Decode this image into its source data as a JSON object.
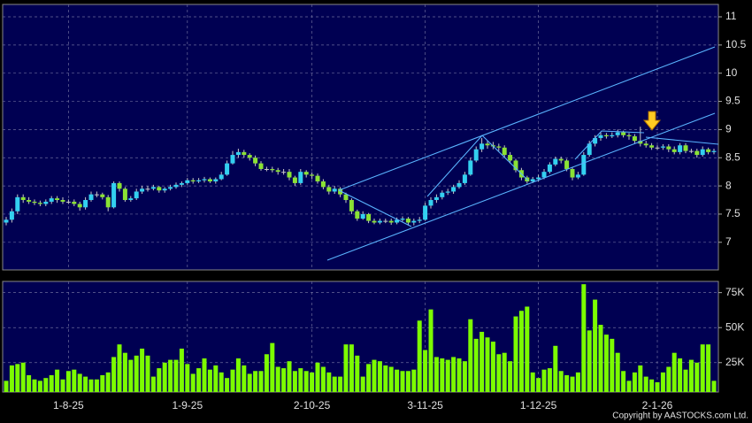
{
  "chart_data": {
    "type": "candlestick",
    "categories": [
      null,
      null,
      null,
      null,
      null,
      null,
      null,
      null,
      null,
      null,
      null,
      "1-8-25",
      null,
      null,
      null,
      null,
      null,
      null,
      null,
      null,
      null,
      null,
      null,
      null,
      null,
      null,
      null,
      null,
      null,
      null,
      null,
      null,
      "1-9-25",
      null,
      null,
      null,
      null,
      null,
      null,
      null,
      null,
      null,
      null,
      null,
      null,
      null,
      null,
      null,
      null,
      null,
      null,
      null,
      null,
      null,
      "2-10-25",
      null,
      null,
      null,
      null,
      null,
      null,
      null,
      null,
      null,
      null,
      null,
      null,
      null,
      null,
      null,
      null,
      null,
      null,
      null,
      "3-11-25",
      null,
      null,
      null,
      null,
      null,
      null,
      null,
      null,
      null,
      null,
      null,
      null,
      null,
      null,
      null,
      null,
      null,
      null,
      null,
      "1-12-25",
      null,
      null,
      null,
      null,
      null,
      null,
      null,
      null,
      null,
      null,
      null,
      null,
      null,
      null,
      null,
      null,
      null,
      null,
      null,
      null,
      "2-1-26",
      null,
      null,
      null,
      null,
      null,
      null,
      null,
      null,
      null,
      null
    ],
    "ohlc": [
      [
        7.35,
        7.45,
        7.3,
        7.4
      ],
      [
        7.4,
        7.6,
        7.35,
        7.55
      ],
      [
        7.55,
        7.85,
        7.5,
        7.8
      ],
      [
        7.8,
        7.85,
        7.7,
        7.75
      ],
      [
        7.75,
        7.8,
        7.68,
        7.72
      ],
      [
        7.72,
        7.76,
        7.66,
        7.7
      ],
      [
        7.7,
        7.74,
        7.64,
        7.68
      ],
      [
        7.68,
        7.76,
        7.64,
        7.72
      ],
      [
        7.72,
        7.82,
        7.68,
        7.78
      ],
      [
        7.78,
        7.82,
        7.7,
        7.75
      ],
      [
        7.75,
        7.8,
        7.68,
        7.72
      ],
      [
        7.72,
        7.76,
        7.68,
        7.72
      ],
      [
        7.72,
        7.76,
        7.64,
        7.68
      ],
      [
        7.68,
        7.72,
        7.56,
        7.62
      ],
      [
        7.62,
        7.8,
        7.58,
        7.75
      ],
      [
        7.75,
        7.9,
        7.72,
        7.85
      ],
      [
        7.85,
        7.9,
        7.8,
        7.85
      ],
      [
        7.85,
        7.88,
        7.76,
        7.8
      ],
      [
        7.8,
        7.84,
        7.55,
        7.62
      ],
      [
        7.62,
        8.08,
        7.6,
        8.05
      ],
      [
        8.05,
        8.08,
        7.9,
        7.95
      ],
      [
        7.95,
        7.98,
        7.72,
        7.75
      ],
      [
        7.75,
        7.82,
        7.72,
        7.78
      ],
      [
        7.78,
        7.95,
        7.75,
        7.9
      ],
      [
        7.9,
        8.0,
        7.86,
        7.95
      ],
      [
        7.95,
        8.0,
        7.9,
        7.95
      ],
      [
        7.95,
        8.02,
        7.92,
        7.98
      ],
      [
        7.98,
        8.0,
        7.88,
        7.92
      ],
      [
        7.92,
        7.98,
        7.88,
        7.95
      ],
      [
        7.95,
        8.02,
        7.92,
        7.98
      ],
      [
        7.98,
        8.06,
        7.95,
        8.02
      ],
      [
        8.02,
        8.08,
        7.98,
        8.05
      ],
      [
        8.05,
        8.14,
        8.02,
        8.1
      ],
      [
        8.1,
        8.14,
        8.04,
        8.08
      ],
      [
        8.08,
        8.14,
        8.05,
        8.1
      ],
      [
        8.1,
        8.16,
        8.06,
        8.12
      ],
      [
        8.12,
        8.15,
        8.05,
        8.08
      ],
      [
        8.08,
        8.15,
        8.04,
        8.12
      ],
      [
        8.12,
        8.25,
        8.1,
        8.2
      ],
      [
        8.2,
        8.45,
        8.18,
        8.4
      ],
      [
        8.4,
        8.62,
        8.38,
        8.55
      ],
      [
        8.55,
        8.66,
        8.5,
        8.6
      ],
      [
        8.6,
        8.64,
        8.5,
        8.55
      ],
      [
        8.55,
        8.58,
        8.45,
        8.5
      ],
      [
        8.5,
        8.54,
        8.35,
        8.4
      ],
      [
        8.4,
        8.44,
        8.27,
        8.3
      ],
      [
        8.3,
        8.34,
        8.26,
        8.3
      ],
      [
        8.3,
        8.34,
        8.24,
        8.28
      ],
      [
        8.28,
        8.32,
        8.2,
        8.25
      ],
      [
        8.25,
        8.3,
        8.2,
        8.25
      ],
      [
        8.25,
        8.3,
        8.1,
        8.15
      ],
      [
        8.15,
        8.18,
        8.0,
        8.05
      ],
      [
        8.05,
        8.3,
        8.02,
        8.25
      ],
      [
        8.25,
        8.28,
        8.15,
        8.2
      ],
      [
        8.2,
        8.24,
        8.12,
        8.18
      ],
      [
        8.18,
        8.22,
        8.04,
        8.08
      ],
      [
        8.08,
        8.12,
        7.94,
        7.98
      ],
      [
        7.98,
        8.02,
        7.85,
        7.9
      ],
      [
        7.9,
        8.0,
        7.86,
        7.95
      ],
      [
        7.95,
        7.98,
        7.8,
        7.85
      ],
      [
        7.85,
        7.88,
        7.7,
        7.75
      ],
      [
        7.75,
        7.78,
        7.5,
        7.55
      ],
      [
        7.55,
        7.58,
        7.38,
        7.42
      ],
      [
        7.42,
        7.55,
        7.4,
        7.5
      ],
      [
        7.5,
        7.52,
        7.34,
        7.38
      ],
      [
        7.38,
        7.42,
        7.32,
        7.35
      ],
      [
        7.35,
        7.42,
        7.32,
        7.38
      ],
      [
        7.38,
        7.42,
        7.34,
        7.38
      ],
      [
        7.38,
        7.42,
        7.31,
        7.35
      ],
      [
        7.35,
        7.44,
        7.32,
        7.4
      ],
      [
        7.4,
        7.46,
        7.37,
        7.42
      ],
      [
        7.42,
        7.45,
        7.3,
        7.35
      ],
      [
        7.35,
        7.42,
        7.3,
        7.38
      ],
      [
        7.38,
        7.45,
        7.34,
        7.4
      ],
      [
        7.4,
        7.7,
        7.38,
        7.65
      ],
      [
        7.65,
        7.8,
        7.6,
        7.75
      ],
      [
        7.75,
        7.85,
        7.7,
        7.8
      ],
      [
        7.8,
        7.92,
        7.76,
        7.88
      ],
      [
        7.88,
        7.95,
        7.84,
        7.9
      ],
      [
        7.9,
        8.02,
        7.86,
        7.98
      ],
      [
        7.98,
        8.1,
        7.95,
        8.05
      ],
      [
        8.05,
        8.25,
        8.02,
        8.2
      ],
      [
        8.2,
        8.5,
        8.18,
        8.45
      ],
      [
        8.45,
        8.7,
        8.42,
        8.65
      ],
      [
        8.65,
        8.85,
        8.6,
        8.75
      ],
      [
        8.75,
        8.8,
        8.66,
        8.72
      ],
      [
        8.72,
        8.78,
        8.65,
        8.7
      ],
      [
        8.7,
        8.75,
        8.62,
        8.68
      ],
      [
        8.68,
        8.72,
        8.5,
        8.55
      ],
      [
        8.55,
        8.6,
        8.4,
        8.45
      ],
      [
        8.45,
        8.48,
        8.24,
        8.28
      ],
      [
        8.28,
        8.32,
        8.1,
        8.15
      ],
      [
        8.15,
        8.18,
        8.04,
        8.08
      ],
      [
        8.08,
        8.16,
        8.05,
        8.12
      ],
      [
        8.12,
        8.2,
        8.08,
        8.15
      ],
      [
        8.15,
        8.3,
        8.12,
        8.25
      ],
      [
        8.25,
        8.42,
        8.22,
        8.38
      ],
      [
        8.38,
        8.52,
        8.35,
        8.48
      ],
      [
        8.48,
        8.52,
        8.4,
        8.45
      ],
      [
        8.45,
        8.48,
        8.26,
        8.3
      ],
      [
        8.3,
        8.34,
        8.1,
        8.15
      ],
      [
        8.15,
        8.25,
        8.12,
        8.2
      ],
      [
        8.2,
        8.6,
        8.18,
        8.55
      ],
      [
        8.55,
        8.8,
        8.52,
        8.75
      ],
      [
        8.75,
        8.9,
        8.7,
        8.85
      ],
      [
        8.85,
        8.95,
        8.8,
        8.9
      ],
      [
        8.9,
        8.94,
        8.84,
        8.88
      ],
      [
        8.88,
        8.95,
        8.85,
        8.9
      ],
      [
        8.9,
        9.0,
        8.86,
        8.95
      ],
      [
        8.95,
        8.98,
        8.86,
        8.9
      ],
      [
        8.9,
        8.94,
        8.82,
        8.88
      ],
      [
        8.88,
        8.92,
        8.75,
        8.8
      ],
      [
        8.8,
        9.05,
        8.7,
        8.75
      ],
      [
        8.75,
        8.8,
        8.68,
        8.72
      ],
      [
        8.72,
        8.76,
        8.64,
        8.68
      ],
      [
        8.68,
        8.72,
        8.64,
        8.68
      ],
      [
        8.68,
        8.74,
        8.64,
        8.7
      ],
      [
        8.7,
        8.74,
        8.6,
        8.65
      ],
      [
        8.65,
        8.7,
        8.56,
        8.6
      ],
      [
        8.6,
        8.76,
        8.56,
        8.72
      ],
      [
        8.72,
        8.76,
        8.58,
        8.62
      ],
      [
        8.62,
        8.66,
        8.58,
        8.62
      ],
      [
        8.62,
        8.66,
        8.5,
        8.55
      ],
      [
        8.55,
        8.7,
        8.52,
        8.65
      ],
      [
        8.65,
        8.68,
        8.56,
        8.6
      ],
      [
        8.6,
        8.66,
        8.56,
        8.62
      ]
    ],
    "up_color": "#33d0f0",
    "down_color": "#8ae234",
    "ylim": [
      6.51,
      11.22
    ],
    "yticks": [
      7,
      7.5,
      8,
      8.5,
      9,
      9.5,
      10,
      10.5,
      11
    ],
    "grid": true,
    "volume": {
      "color": "#7cfc00",
      "ylim": [
        4000,
        83000
      ],
      "yticks": [
        {
          "value": 25000,
          "label": "25K"
        },
        {
          "value": 50000,
          "label": "50K"
        },
        {
          "value": 75000,
          "label": "75K"
        }
      ],
      "values": [
        12000,
        23000,
        24000,
        25000,
        16000,
        13000,
        12000,
        14000,
        16000,
        20000,
        13000,
        19000,
        20000,
        17000,
        15000,
        13000,
        13000,
        16000,
        18000,
        29000,
        38000,
        32000,
        27000,
        30000,
        35000,
        30000,
        15000,
        21000,
        25000,
        27000,
        27000,
        35000,
        24000,
        17000,
        21000,
        28000,
        20000,
        23000,
        18000,
        14000,
        20000,
        28000,
        23000,
        17000,
        19000,
        19000,
        31000,
        39000,
        22000,
        21000,
        26000,
        19000,
        21000,
        19000,
        18000,
        25000,
        22000,
        18000,
        15000,
        15000,
        38000,
        38000,
        30000,
        15000,
        24000,
        27000,
        26000,
        23000,
        22000,
        20000,
        19000,
        19000,
        20000,
        55000,
        34000,
        63000,
        29000,
        28000,
        27000,
        29000,
        28000,
        26000,
        56000,
        42000,
        47000,
        43000,
        40000,
        31000,
        32000,
        26000,
        58000,
        62000,
        65000,
        18000,
        14000,
        20000,
        21000,
        37000,
        19000,
        16000,
        15000,
        18000,
        81000,
        48000,
        70000,
        52000,
        45000,
        42000,
        32000,
        19000,
        12000,
        18000,
        23000,
        15000,
        13000,
        11000,
        18000,
        22000,
        32000,
        28000,
        20000,
        27000,
        25000,
        38000,
        38000,
        12000
      ]
    }
  },
  "footer": "Copyright by AASTOCKS.com Ltd."
}
